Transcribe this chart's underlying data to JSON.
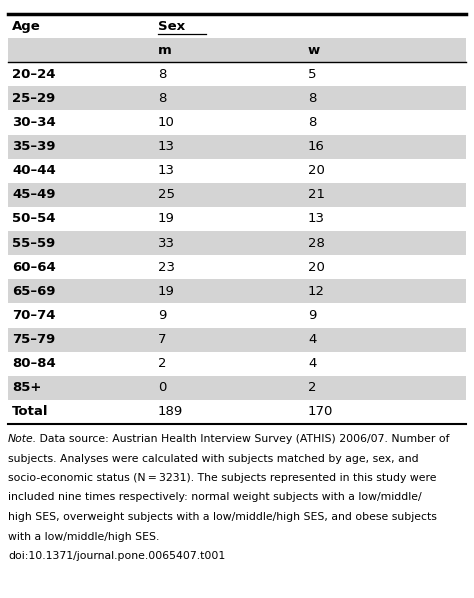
{
  "rows": [
    [
      "20–24",
      "8",
      "5"
    ],
    [
      "25–29",
      "8",
      "8"
    ],
    [
      "30–34",
      "10",
      "8"
    ],
    [
      "35–39",
      "13",
      "16"
    ],
    [
      "40–44",
      "13",
      "20"
    ],
    [
      "45–49",
      "25",
      "21"
    ],
    [
      "50–54",
      "19",
      "13"
    ],
    [
      "55–59",
      "33",
      "28"
    ],
    [
      "60–64",
      "23",
      "20"
    ],
    [
      "65–69",
      "19",
      "12"
    ],
    [
      "70–74",
      "9",
      "9"
    ],
    [
      "75–79",
      "7",
      "4"
    ],
    [
      "80–84",
      "2",
      "4"
    ],
    [
      "85+",
      "0",
      "2"
    ],
    [
      "Total",
      "189",
      "170"
    ]
  ],
  "shaded_color": "#d4d4d4",
  "white_color": "#ffffff",
  "note_lines": [
    [
      "italic",
      "Note.",
      " Data source: Austrian Health Interview Survey (ATHIS) 2006/07. Number of"
    ],
    [
      "normal",
      "subjects. Analyses were calculated with subjects matched by age, sex, and"
    ],
    [
      "normal",
      "socio-economic status (N = 3231). The subjects represented in this study were"
    ],
    [
      "normal",
      "included nine times respectively: normal weight subjects with a low/middle/"
    ],
    [
      "normal",
      "high SES, overweight subjects with a low/middle/high SES, and obese subjects"
    ],
    [
      "normal",
      "with a low/middle/high SES."
    ],
    [
      "normal",
      "doi:10.1371/journal.pone.0065407.t001"
    ]
  ]
}
